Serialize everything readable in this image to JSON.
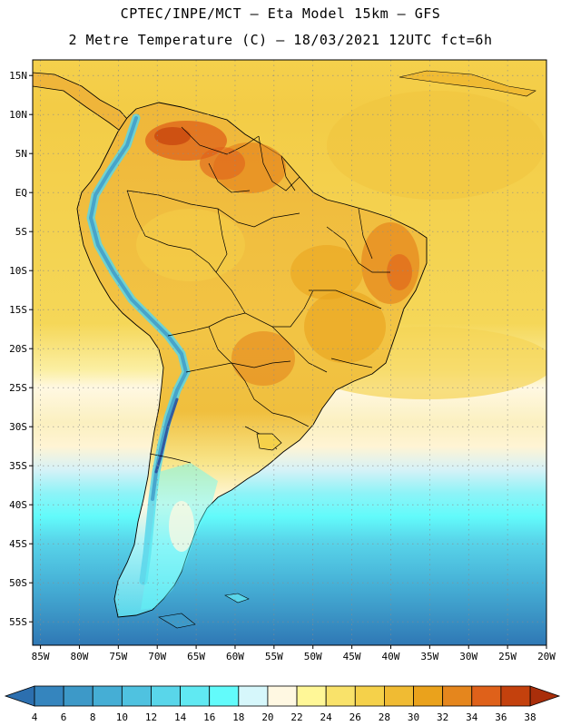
{
  "title": {
    "line1": "CPTEC/INPE/MCT –  Eta Model 15km – GFS",
    "line2": "2 Metre Temperature (C) – 18/03/2021 12UTC fct=6h"
  },
  "map": {
    "lat_range": [
      -58,
      17
    ],
    "lon_range": [
      -86,
      -20
    ],
    "lat_ticks": [
      {
        "value": 15,
        "label": "15N"
      },
      {
        "value": 10,
        "label": "10N"
      },
      {
        "value": 5,
        "label": "5N"
      },
      {
        "value": 0,
        "label": "EQ"
      },
      {
        "value": -5,
        "label": "5S"
      },
      {
        "value": -10,
        "label": "10S"
      },
      {
        "value": -15,
        "label": "15S"
      },
      {
        "value": -20,
        "label": "20S"
      },
      {
        "value": -25,
        "label": "25S"
      },
      {
        "value": -30,
        "label": "30S"
      },
      {
        "value": -35,
        "label": "35S"
      },
      {
        "value": -40,
        "label": "40S"
      },
      {
        "value": -45,
        "label": "45S"
      },
      {
        "value": -50,
        "label": "50S"
      },
      {
        "value": -55,
        "label": "55S"
      }
    ],
    "lon_ticks": [
      {
        "value": -85,
        "label": "85W"
      },
      {
        "value": -80,
        "label": "80W"
      },
      {
        "value": -75,
        "label": "75W"
      },
      {
        "value": -70,
        "label": "70W"
      },
      {
        "value": -65,
        "label": "65W"
      },
      {
        "value": -60,
        "label": "60W"
      },
      {
        "value": -55,
        "label": "55W"
      },
      {
        "value": -50,
        "label": "50W"
      },
      {
        "value": -45,
        "label": "45W"
      },
      {
        "value": -40,
        "label": "40W"
      },
      {
        "value": -35,
        "label": "35W"
      },
      {
        "value": -30,
        "label": "30W"
      },
      {
        "value": -25,
        "label": "25W"
      },
      {
        "value": -20,
        "label": "20W"
      }
    ]
  },
  "colorbar": {
    "levels": [
      "4",
      "6",
      "8",
      "10",
      "12",
      "14",
      "16",
      "18",
      "20",
      "22",
      "24",
      "26",
      "28",
      "30",
      "32",
      "34",
      "36",
      "38"
    ],
    "colors": [
      "#2c6faf",
      "#3585be",
      "#3d99c8",
      "#45aed5",
      "#4fc2e0",
      "#59d6ea",
      "#60e9f2",
      "#62fbfb",
      "#d6f7fb",
      "#fff8e2",
      "#fff797",
      "#f9e26a",
      "#f5d14a",
      "#f0bb33",
      "#eaa21c",
      "#e5861d",
      "#df611a",
      "#c4410d",
      "#a92e0a"
    ]
  }
}
